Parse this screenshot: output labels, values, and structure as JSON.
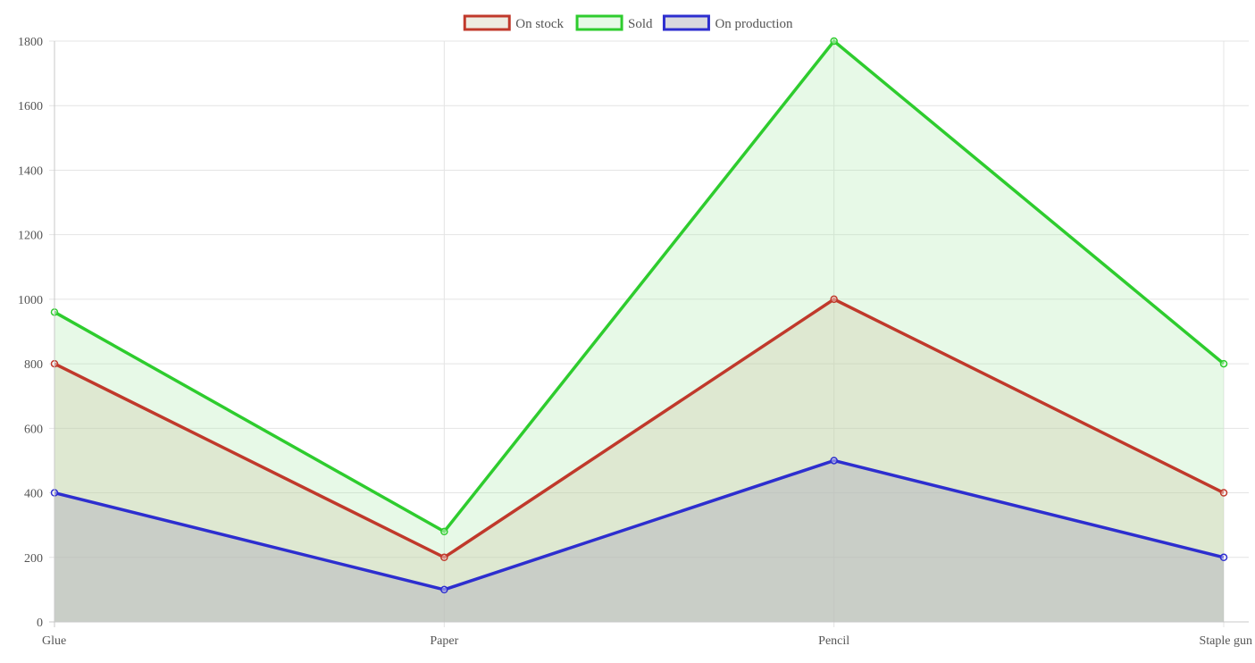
{
  "chart_data": {
    "type": "area",
    "categories": [
      "Glue",
      "Paper",
      "Pencil",
      "Staple gun"
    ],
    "ylim": [
      0,
      1800
    ],
    "yticks": [
      0,
      200,
      400,
      600,
      800,
      1000,
      1200,
      1400,
      1600,
      1800
    ],
    "grid": true,
    "legend_position": "top-center",
    "series": [
      {
        "name": "On stock",
        "values": [
          800,
          200,
          1000,
          400
        ],
        "color": "#c0392b",
        "fill": "rgba(205, 200, 170, 0.35)"
      },
      {
        "name": "Sold",
        "values": [
          960,
          280,
          1800,
          800
        ],
        "color": "#2ecc2e",
        "fill": "rgba(170, 235, 170, 0.28)"
      },
      {
        "name": "On production",
        "values": [
          400,
          100,
          500,
          200
        ],
        "color": "#2d2ecf",
        "fill": "rgba(180, 180, 190, 0.5)"
      }
    ]
  }
}
